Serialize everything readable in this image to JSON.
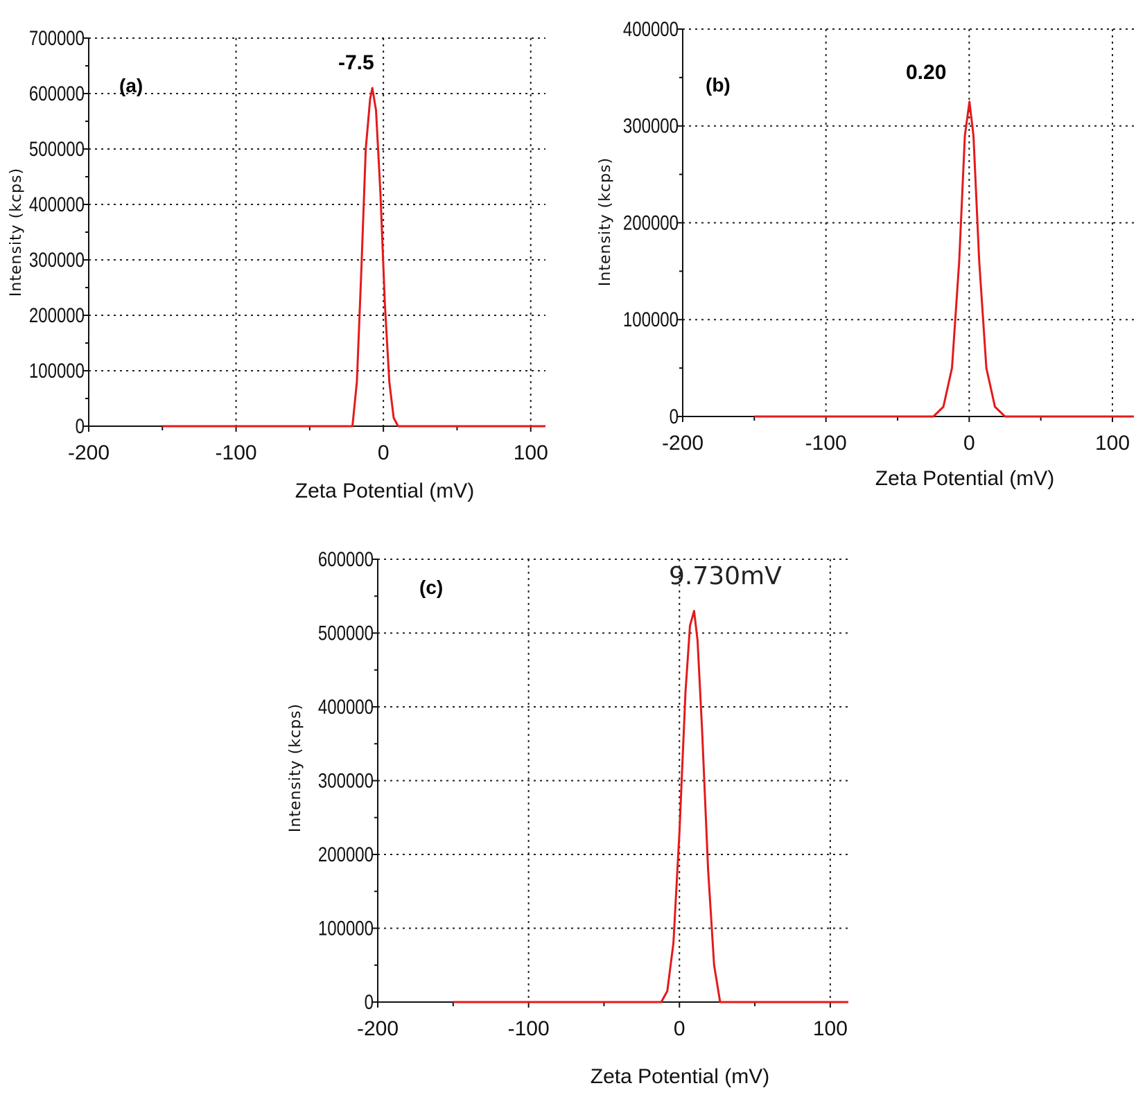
{
  "colors": {
    "series": "#e31a1c",
    "axis": "#111111",
    "grid": "#222222"
  },
  "chart_data": [
    {
      "type": "line",
      "panel": "(a)",
      "peak_label": "-7.5",
      "xlabel": "Zeta Potential (mV)",
      "ylabel": "Intensity (kcps)",
      "xlim": [
        -200,
        110
      ],
      "ylim": [
        0,
        700000
      ],
      "x_ticks": [
        "-200",
        "-100",
        "0",
        "100"
      ],
      "x_tick_values": [
        -200,
        -100,
        0,
        100
      ],
      "y_ticks": [
        "0",
        "100000",
        "200000",
        "300000",
        "400000",
        "500000",
        "600000",
        "700000"
      ],
      "y_tick_values": [
        0,
        100000,
        200000,
        300000,
        400000,
        500000,
        600000,
        700000
      ],
      "grid": true,
      "series": [
        {
          "x": [
            -150,
            -21,
            -18,
            -15,
            -12,
            -9,
            -7.5,
            -5,
            -2,
            1,
            4,
            7,
            10,
            110
          ],
          "y": [
            0,
            0,
            80000,
            280000,
            500000,
            590000,
            610000,
            570000,
            420000,
            220000,
            80000,
            15000,
            0,
            0
          ]
        }
      ]
    },
    {
      "type": "line",
      "panel": "(b)",
      "peak_label": "0.20",
      "xlabel": "Zeta Potential (mV)",
      "ylabel": "Intensity (kcps)",
      "xlim": [
        -200,
        115
      ],
      "ylim": [
        0,
        400000
      ],
      "x_ticks": [
        "-200",
        "-100",
        "0",
        "100"
      ],
      "x_tick_values": [
        -200,
        -100,
        0,
        100
      ],
      "y_ticks": [
        "0",
        "100000",
        "200000",
        "300000",
        "400000"
      ],
      "y_tick_values": [
        0,
        100000,
        200000,
        300000,
        400000
      ],
      "grid": true,
      "series": [
        {
          "x": [
            -150,
            -25,
            -18,
            -12,
            -7,
            -3,
            0.2,
            3,
            7,
            12,
            18,
            25,
            115
          ],
          "y": [
            0,
            0,
            10000,
            50000,
            160000,
            290000,
            325000,
            290000,
            160000,
            50000,
            10000,
            0,
            0
          ]
        }
      ]
    },
    {
      "type": "line",
      "panel": "(c)",
      "peak_label": "9.730mV",
      "xlabel": "Zeta Potential (mV)",
      "ylabel": "Intensity (kcps)",
      "xlim": [
        -200,
        112
      ],
      "ylim": [
        0,
        600000
      ],
      "x_ticks": [
        "-200",
        "-100",
        "0",
        "100"
      ],
      "x_tick_values": [
        -200,
        -100,
        0,
        100
      ],
      "y_ticks": [
        "0",
        "100000",
        "200000",
        "300000",
        "400000",
        "500000",
        "600000"
      ],
      "y_tick_values": [
        0,
        100000,
        200000,
        300000,
        400000,
        500000,
        600000
      ],
      "grid": true,
      "series": [
        {
          "x": [
            -150,
            -12,
            -8,
            -4,
            0,
            4,
            7,
            9.73,
            12,
            15,
            19,
            23,
            27,
            112
          ],
          "y": [
            0,
            0,
            15000,
            80000,
            230000,
            420000,
            510000,
            530000,
            490000,
            370000,
            180000,
            50000,
            0,
            0
          ]
        }
      ]
    }
  ]
}
